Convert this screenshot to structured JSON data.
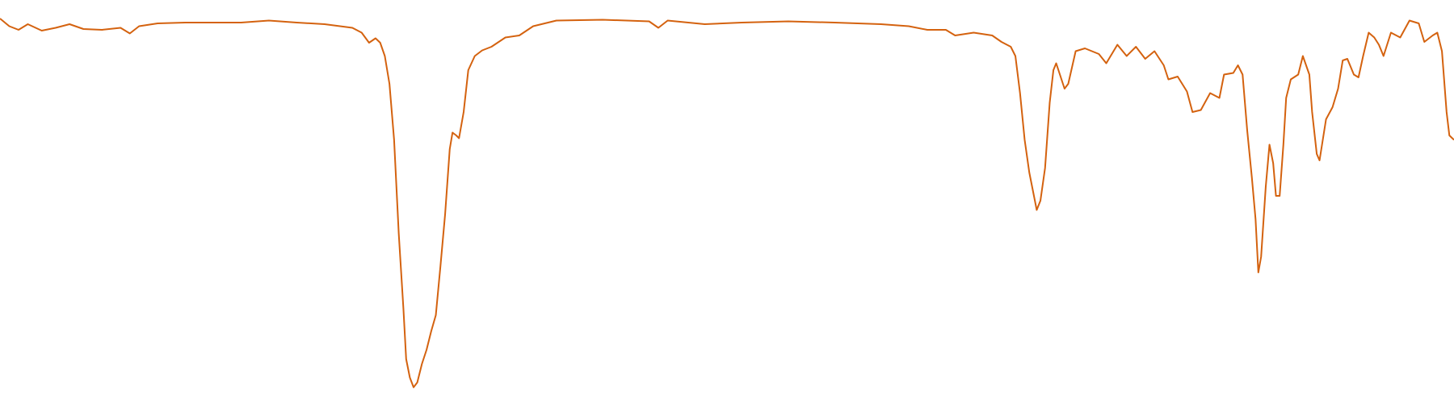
{
  "chart_data": {
    "type": "line",
    "color": "#d4620f",
    "xlim": [
      0,
      1568
    ],
    "ylim": [
      0,
      100
    ],
    "x": [
      0,
      10,
      20,
      30,
      45,
      60,
      75,
      90,
      110,
      130,
      140,
      150,
      170,
      200,
      230,
      260,
      290,
      320,
      350,
      380,
      390,
      398,
      405,
      410,
      415,
      420,
      425,
      430,
      435,
      438,
      442,
      446,
      450,
      455,
      460,
      465,
      470,
      475,
      480,
      485,
      488,
      492,
      495,
      500,
      505,
      512,
      520,
      530,
      545,
      560,
      575,
      600,
      650,
      700,
      710,
      720,
      760,
      800,
      850,
      900,
      950,
      980,
      1000,
      1020,
      1030,
      1050,
      1070,
      1080,
      1090,
      1095,
      1100,
      1105,
      1110,
      1115,
      1118,
      1122,
      1127,
      1132,
      1136,
      1139,
      1143,
      1148,
      1152,
      1160,
      1170,
      1185,
      1193,
      1205,
      1215,
      1225,
      1235,
      1245,
      1255,
      1260,
      1270,
      1280,
      1286,
      1295,
      1305,
      1315,
      1320,
      1330,
      1335,
      1340,
      1345,
      1350,
      1354,
      1357,
      1360,
      1365,
      1369,
      1373,
      1376,
      1380,
      1384,
      1387,
      1392,
      1400,
      1405,
      1412,
      1415,
      1420,
      1423,
      1430,
      1437,
      1443,
      1448,
      1453,
      1460,
      1465,
      1470,
      1476,
      1482,
      1487,
      1492,
      1500,
      1510,
      1520,
      1530,
      1536,
      1545,
      1550,
      1555,
      1560,
      1563,
      1568
    ],
    "values": [
      95.4,
      93.5,
      92.6,
      94.0,
      92.4,
      93.1,
      94.0,
      92.8,
      92.6,
      93.1,
      91.7,
      93.5,
      94.2,
      94.4,
      94.4,
      94.4,
      94.9,
      94.4,
      94.0,
      93.1,
      91.9,
      89.4,
      90.5,
      89.4,
      86.1,
      79.2,
      65.3,
      42.1,
      23.6,
      10.9,
      6.3,
      3.9,
      5.1,
      9.7,
      13.2,
      17.8,
      21.8,
      34.0,
      46.8,
      63.0,
      67.1,
      66.4,
      65.7,
      72.2,
      82.6,
      86.1,
      87.5,
      88.4,
      90.7,
      91.2,
      93.5,
      94.9,
      95.1,
      94.7,
      93.1,
      94.9,
      94.0,
      94.4,
      94.7,
      94.4,
      94.0,
      93.5,
      92.6,
      92.6,
      91.2,
      91.9,
      91.2,
      89.6,
      88.4,
      86.1,
      76.9,
      65.3,
      57.2,
      51.4,
      47.9,
      50.2,
      58.3,
      74.5,
      82.6,
      84.3,
      81.5,
      78.0,
      79.2,
      87.3,
      88.0,
      86.6,
      84.3,
      88.9,
      86.1,
      88.4,
      85.4,
      87.3,
      83.8,
      80.3,
      81.0,
      77.3,
      72.2,
      72.7,
      76.9,
      75.7,
      81.5,
      81.9,
      83.8,
      81.5,
      67.6,
      56.0,
      45.6,
      32.4,
      36.3,
      53.7,
      64.1,
      59.5,
      51.4,
      51.4,
      64.1,
      75.7,
      80.3,
      81.5,
      86.1,
      81.5,
      72.2,
      61.8,
      60.2,
      70.4,
      73.4,
      78.0,
      85.0,
      85.4,
      81.5,
      80.8,
      86.1,
      91.9,
      90.7,
      88.9,
      86.1,
      91.9,
      90.7,
      94.9,
      94.2,
      89.6,
      91.2,
      91.9,
      87.3,
      72.2,
      66.4,
      65.3
    ]
  }
}
